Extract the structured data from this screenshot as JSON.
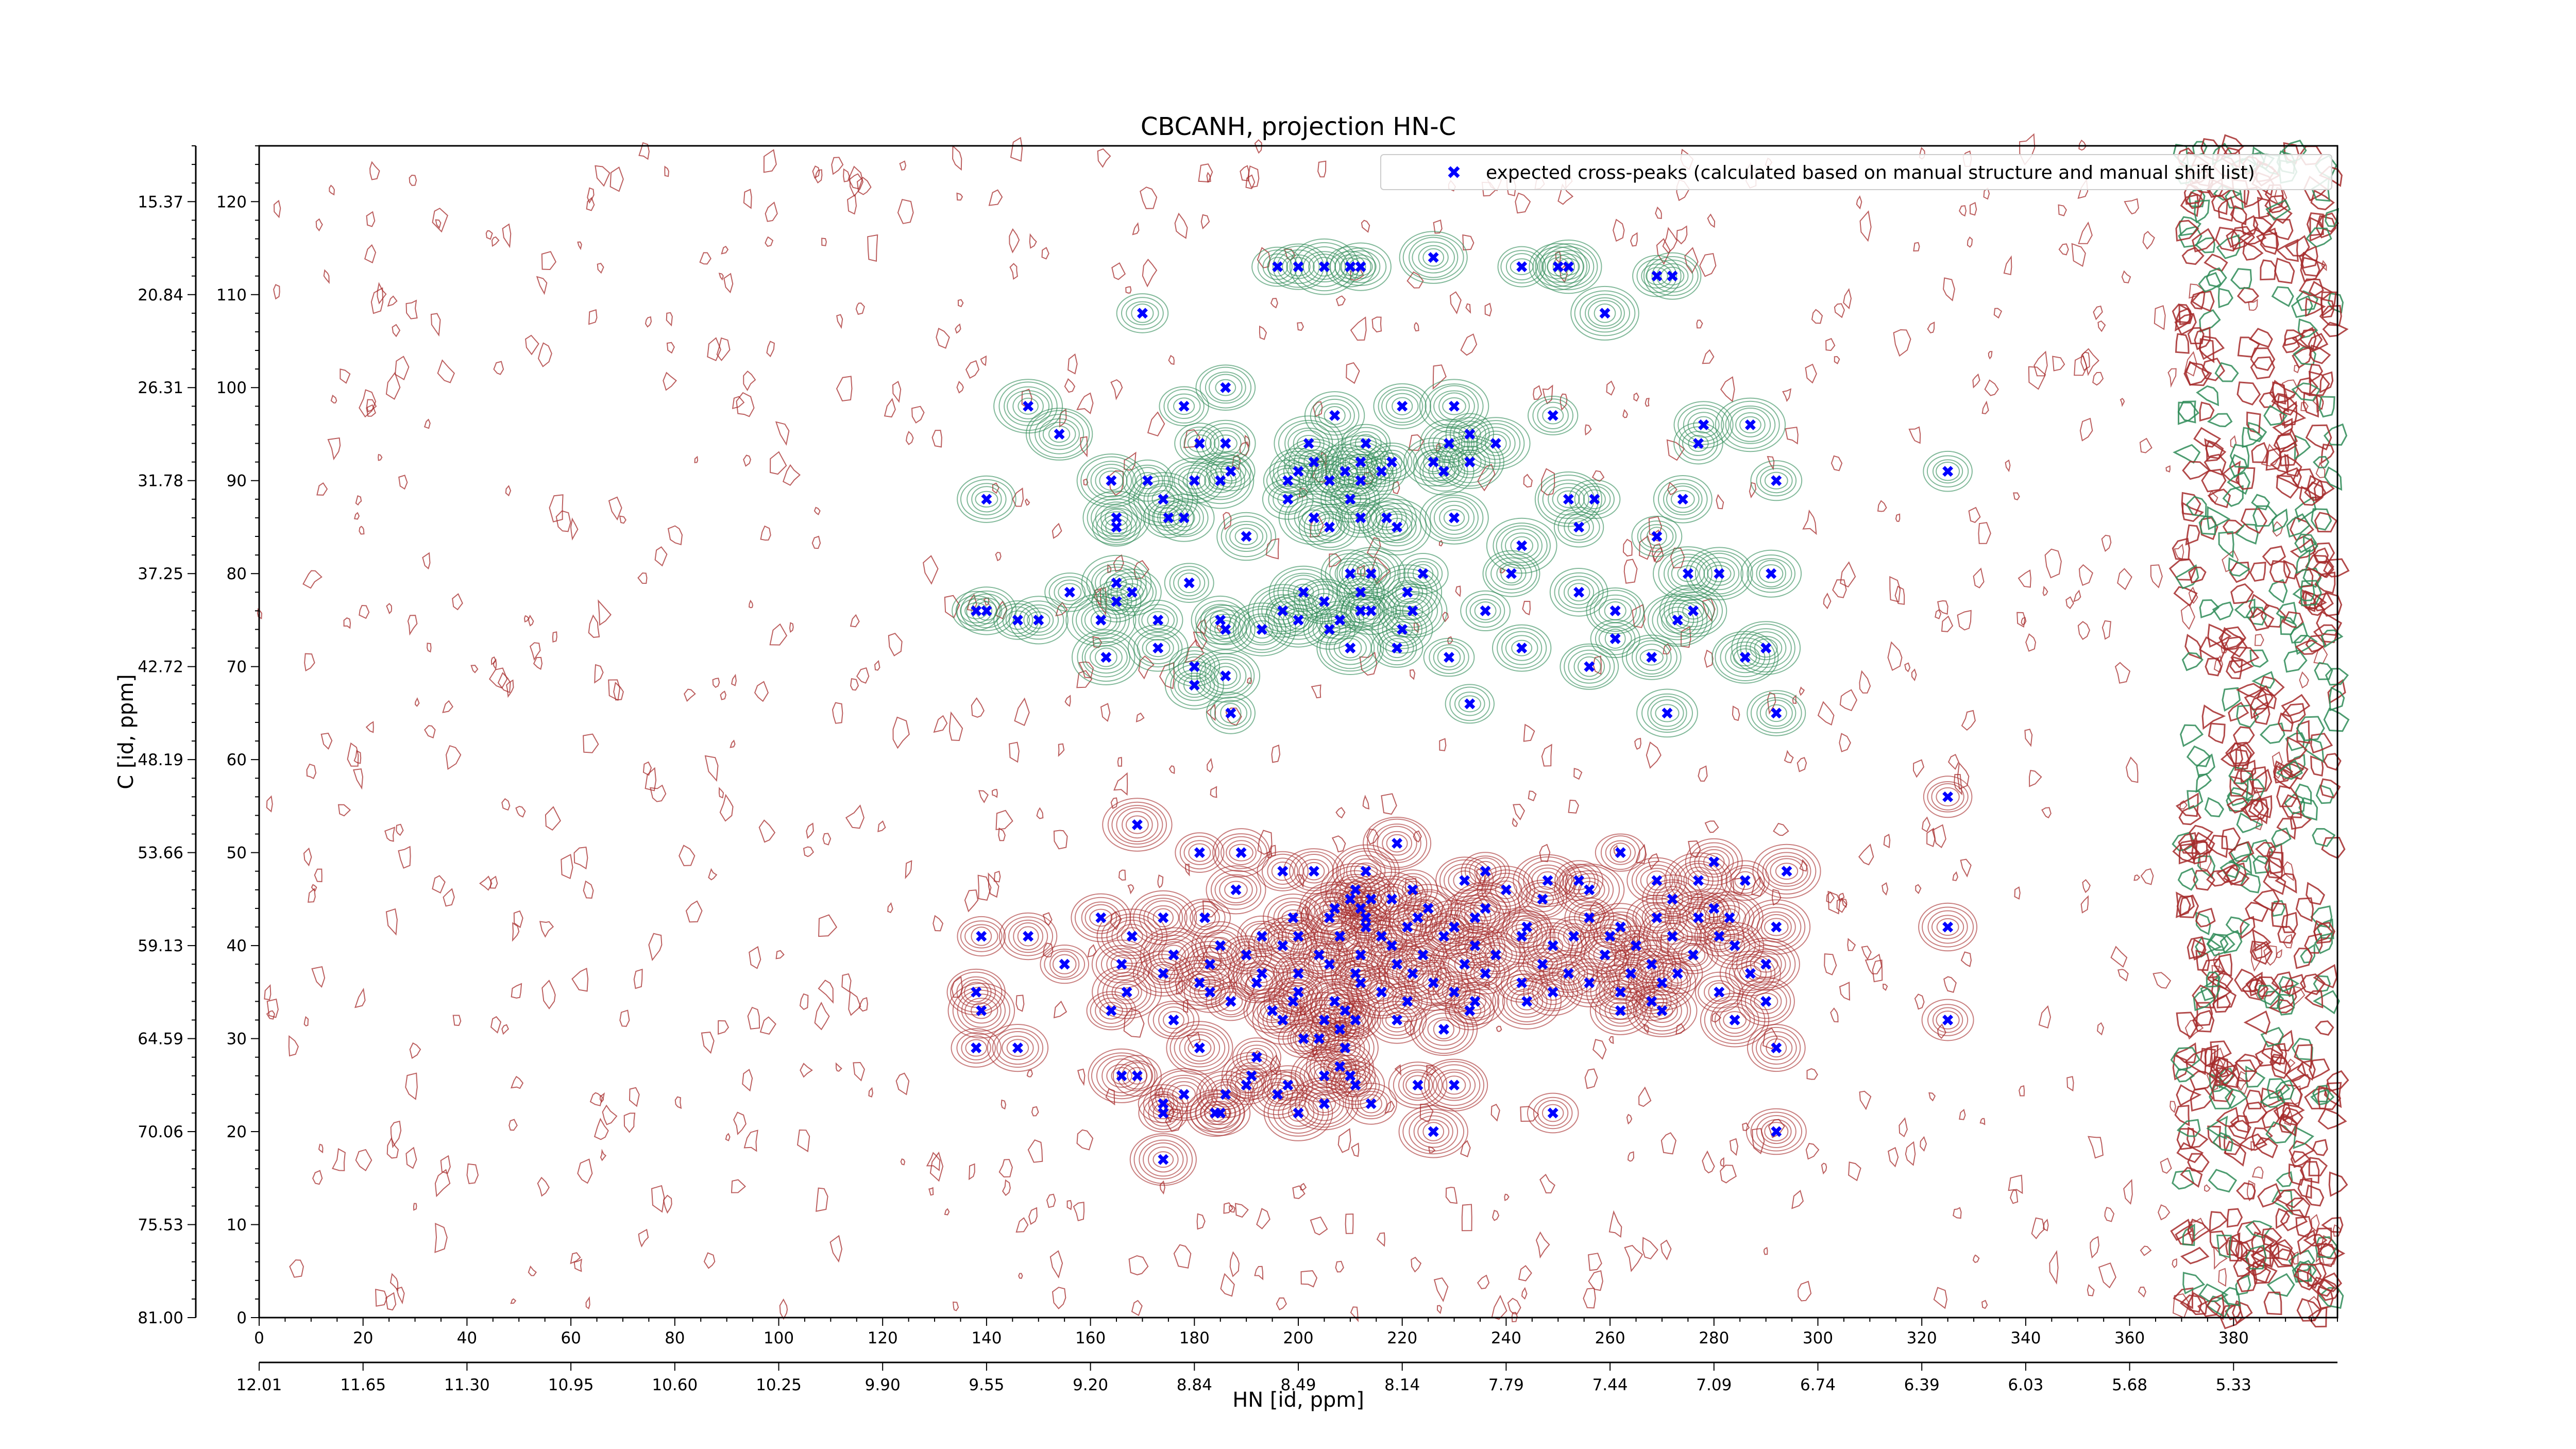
{
  "chart_data": {
    "type": "scatter",
    "title": "CBCANH, projection HN-C",
    "xlabel": "HN [id, ppm]",
    "ylabel": "C [id, ppm]",
    "xlim": [
      0,
      400
    ],
    "ylim": [
      0,
      126
    ],
    "x_index_ticks": [
      "0",
      "20",
      "40",
      "60",
      "80",
      "100",
      "120",
      "140",
      "160",
      "180",
      "200",
      "220",
      "240",
      "260",
      "280",
      "300",
      "320",
      "340",
      "360",
      "380"
    ],
    "x_ppm_ticks": [
      "12.01",
      "11.65",
      "11.30",
      "10.95",
      "10.60",
      "10.25",
      "9.90",
      "9.55",
      "9.20",
      "8.84",
      "8.49",
      "8.14",
      "7.79",
      "7.44",
      "7.09",
      "6.74",
      "6.39",
      "6.03",
      "5.68",
      "5.33"
    ],
    "y_index_ticks": [
      "0",
      "10",
      "20",
      "30",
      "40",
      "50",
      "60",
      "70",
      "80",
      "90",
      "100",
      "110",
      "120"
    ],
    "y_ppm_ticks": [
      "81.00",
      "75.53",
      "70.06",
      "64.59",
      "59.13",
      "53.66",
      "48.19",
      "42.72",
      "37.25",
      "31.78",
      "26.31",
      "20.84",
      "15.37"
    ],
    "legend": {
      "label": "expected cross-peaks (calculated based on manual structure and manual shift list)",
      "placement": "top-right"
    },
    "colors": {
      "peaks": "#0000ff",
      "positive_contour": "#2e8b57",
      "negative_contour": "#a52a2a"
    },
    "grid": false,
    "series": [
      {
        "name": "expected cross-peaks (calculated based on manual structure and manual shift list)",
        "points": [
          [
            196,
            113
          ],
          [
            200,
            113
          ],
          [
            205,
            113
          ],
          [
            210,
            113
          ],
          [
            212,
            113
          ],
          [
            226,
            114
          ],
          [
            243,
            113
          ],
          [
            250,
            113
          ],
          [
            252,
            113
          ],
          [
            269,
            112
          ],
          [
            272,
            112
          ],
          [
            259,
            108
          ],
          [
            170,
            108
          ],
          [
            186,
            100
          ],
          [
            148,
            98
          ],
          [
            178,
            98
          ],
          [
            220,
            98
          ],
          [
            230,
            98
          ],
          [
            249,
            97
          ],
          [
            207,
            97
          ],
          [
            154,
            95
          ],
          [
            233,
            95
          ],
          [
            278,
            96
          ],
          [
            287,
            96
          ],
          [
            181,
            94
          ],
          [
            186,
            94
          ],
          [
            202,
            94
          ],
          [
            213,
            94
          ],
          [
            229,
            94
          ],
          [
            238,
            94
          ],
          [
            277,
            94
          ],
          [
            203,
            92
          ],
          [
            212,
            92
          ],
          [
            218,
            92
          ],
          [
            226,
            92
          ],
          [
            233,
            92
          ],
          [
            187,
            91
          ],
          [
            200,
            91
          ],
          [
            209,
            91
          ],
          [
            216,
            91
          ],
          [
            228,
            91
          ],
          [
            164,
            90
          ],
          [
            171,
            90
          ],
          [
            180,
            90
          ],
          [
            185,
            90
          ],
          [
            198,
            90
          ],
          [
            206,
            90
          ],
          [
            212,
            90
          ],
          [
            292,
            90
          ],
          [
            140,
            88
          ],
          [
            174,
            88
          ],
          [
            198,
            88
          ],
          [
            210,
            88
          ],
          [
            252,
            88
          ],
          [
            257,
            88
          ],
          [
            274,
            88
          ],
          [
            165,
            86
          ],
          [
            175,
            86
          ],
          [
            178,
            86
          ],
          [
            203,
            86
          ],
          [
            212,
            86
          ],
          [
            217,
            86
          ],
          [
            230,
            86
          ],
          [
            165,
            85
          ],
          [
            206,
            85
          ],
          [
            219,
            85
          ],
          [
            254,
            85
          ],
          [
            190,
            84
          ],
          [
            243,
            83
          ],
          [
            269,
            84
          ],
          [
            291,
            80
          ],
          [
            165,
            79
          ],
          [
            179,
            79
          ],
          [
            210,
            80
          ],
          [
            214,
            80
          ],
          [
            224,
            80
          ],
          [
            241,
            80
          ],
          [
            281,
            80
          ],
          [
            156,
            78
          ],
          [
            168,
            78
          ],
          [
            201,
            78
          ],
          [
            212,
            78
          ],
          [
            254,
            78
          ],
          [
            275,
            80
          ],
          [
            165,
            77
          ],
          [
            205,
            77
          ],
          [
            221,
            78
          ],
          [
            138,
            76
          ],
          [
            140,
            76
          ],
          [
            162,
            75
          ],
          [
            173,
            75
          ],
          [
            185,
            75
          ],
          [
            197,
            76
          ],
          [
            212,
            76
          ],
          [
            214,
            76
          ],
          [
            222,
            76
          ],
          [
            236,
            76
          ],
          [
            261,
            76
          ],
          [
            276,
            76
          ],
          [
            146,
            75
          ],
          [
            150,
            75
          ],
          [
            200,
            75
          ],
          [
            208,
            75
          ],
          [
            186,
            74
          ],
          [
            193,
            74
          ],
          [
            206,
            74
          ],
          [
            220,
            74
          ],
          [
            273,
            75
          ],
          [
            261,
            73
          ],
          [
            173,
            72
          ],
          [
            210,
            72
          ],
          [
            219,
            72
          ],
          [
            243,
            72
          ],
          [
            290,
            72
          ],
          [
            229,
            71
          ],
          [
            268,
            71
          ],
          [
            286,
            71
          ],
          [
            180,
            70
          ],
          [
            180,
            68
          ],
          [
            186,
            69
          ],
          [
            233,
            66
          ],
          [
            256,
            70
          ],
          [
            163,
            71
          ],
          [
            187,
            65
          ],
          [
            271,
            65
          ],
          [
            169,
            53
          ],
          [
            181,
            50
          ],
          [
            189,
            50
          ],
          [
            219,
            51
          ],
          [
            262,
            50
          ],
          [
            280,
            49
          ],
          [
            294,
            48
          ],
          [
            197,
            48
          ],
          [
            203,
            48
          ],
          [
            213,
            48
          ],
          [
            236,
            48
          ],
          [
            232,
            47
          ],
          [
            248,
            47
          ],
          [
            254,
            47
          ],
          [
            269,
            47
          ],
          [
            277,
            47
          ],
          [
            286,
            47
          ],
          [
            188,
            46
          ],
          [
            211,
            46
          ],
          [
            222,
            46
          ],
          [
            240,
            46
          ],
          [
            256,
            46
          ],
          [
            210,
            45
          ],
          [
            214,
            45
          ],
          [
            218,
            45
          ],
          [
            247,
            45
          ],
          [
            272,
            45
          ],
          [
            207,
            44
          ],
          [
            212,
            44
          ],
          [
            225,
            44
          ],
          [
            236,
            44
          ],
          [
            280,
            44
          ],
          [
            162,
            43
          ],
          [
            174,
            43
          ],
          [
            182,
            43
          ],
          [
            199,
            43
          ],
          [
            206,
            43
          ],
          [
            213,
            43
          ],
          [
            223,
            43
          ],
          [
            234,
            43
          ],
          [
            256,
            43
          ],
          [
            269,
            43
          ],
          [
            277,
            43
          ],
          [
            213,
            42
          ],
          [
            221,
            42
          ],
          [
            230,
            42
          ],
          [
            244,
            42
          ],
          [
            262,
            42
          ],
          [
            283,
            43
          ],
          [
            139,
            41
          ],
          [
            148,
            41
          ],
          [
            168,
            41
          ],
          [
            193,
            41
          ],
          [
            200,
            41
          ],
          [
            208,
            41
          ],
          [
            216,
            41
          ],
          [
            228,
            41
          ],
          [
            243,
            41
          ],
          [
            253,
            41
          ],
          [
            260,
            41
          ],
          [
            272,
            41
          ],
          [
            281,
            41
          ],
          [
            185,
            40
          ],
          [
            197,
            40
          ],
          [
            218,
            40
          ],
          [
            234,
            40
          ],
          [
            249,
            40
          ],
          [
            265,
            40
          ],
          [
            284,
            40
          ],
          [
            176,
            39
          ],
          [
            190,
            39
          ],
          [
            204,
            39
          ],
          [
            212,
            39
          ],
          [
            224,
            39
          ],
          [
            238,
            39
          ],
          [
            259,
            39
          ],
          [
            276,
            39
          ],
          [
            166,
            38
          ],
          [
            183,
            38
          ],
          [
            206,
            38
          ],
          [
            219,
            38
          ],
          [
            232,
            38
          ],
          [
            247,
            38
          ],
          [
            268,
            38
          ],
          [
            290,
            38
          ],
          [
            155,
            38
          ],
          [
            174,
            37
          ],
          [
            193,
            37
          ],
          [
            200,
            37
          ],
          [
            211,
            37
          ],
          [
            222,
            37
          ],
          [
            236,
            37
          ],
          [
            252,
            37
          ],
          [
            264,
            37
          ],
          [
            273,
            37
          ],
          [
            287,
            37
          ],
          [
            181,
            36
          ],
          [
            192,
            36
          ],
          [
            212,
            36
          ],
          [
            226,
            36
          ],
          [
            243,
            36
          ],
          [
            256,
            36
          ],
          [
            270,
            36
          ],
          [
            183,
            35
          ],
          [
            200,
            35
          ],
          [
            216,
            35
          ],
          [
            230,
            35
          ],
          [
            249,
            35
          ],
          [
            262,
            35
          ],
          [
            281,
            35
          ],
          [
            138,
            35
          ],
          [
            167,
            35
          ],
          [
            187,
            34
          ],
          [
            199,
            34
          ],
          [
            207,
            34
          ],
          [
            221,
            34
          ],
          [
            234,
            34
          ],
          [
            244,
            34
          ],
          [
            268,
            34
          ],
          [
            290,
            34
          ],
          [
            139,
            33
          ],
          [
            164,
            33
          ],
          [
            195,
            33
          ],
          [
            209,
            33
          ],
          [
            233,
            33
          ],
          [
            262,
            33
          ],
          [
            270,
            33
          ],
          [
            176,
            32
          ],
          [
            197,
            32
          ],
          [
            205,
            32
          ],
          [
            211,
            32
          ],
          [
            219,
            32
          ],
          [
            284,
            32
          ],
          [
            325,
            32
          ],
          [
            208,
            31
          ],
          [
            228,
            31
          ],
          [
            138,
            29
          ],
          [
            146,
            29
          ],
          [
            181,
            29
          ],
          [
            201,
            30
          ],
          [
            204,
            30
          ],
          [
            209,
            29
          ],
          [
            192,
            28
          ],
          [
            292,
            29
          ],
          [
            208,
            27
          ],
          [
            210,
            26
          ],
          [
            211,
            25
          ],
          [
            205,
            26
          ],
          [
            198,
            25
          ],
          [
            191,
            26
          ],
          [
            166,
            26
          ],
          [
            169,
            26
          ],
          [
            196,
            24
          ],
          [
            205,
            23
          ],
          [
            214,
            23
          ],
          [
            223,
            25
          ],
          [
            230,
            25
          ],
          [
            190,
            25
          ],
          [
            186,
            24
          ],
          [
            178,
            24
          ],
          [
            174,
            23
          ],
          [
            184,
            22
          ],
          [
            200,
            22
          ],
          [
            174,
            22
          ],
          [
            185,
            22
          ],
          [
            226,
            20
          ],
          [
            249,
            22
          ],
          [
            292,
            20
          ],
          [
            174,
            17
          ],
          [
            325,
            56
          ],
          [
            325,
            42
          ],
          [
            292,
            42
          ],
          [
            325,
            91
          ],
          [
            292,
            65
          ]
        ]
      }
    ]
  }
}
